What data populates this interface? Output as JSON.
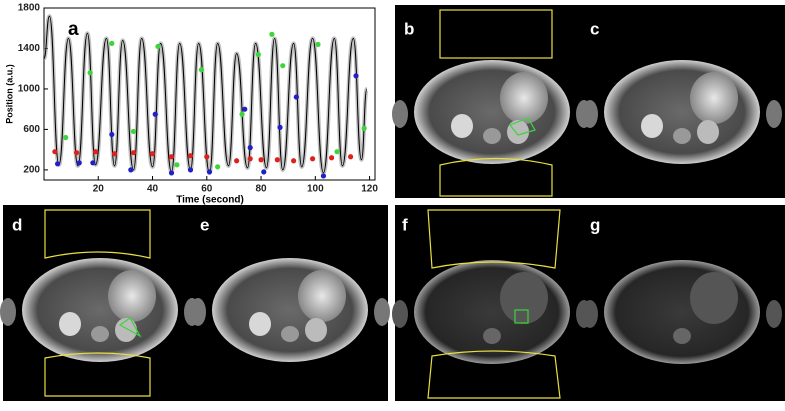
{
  "chart_data": {
    "type": "line",
    "label": "a",
    "xlabel": "Time (second)",
    "ylabel": "Position (a.u.)",
    "xlim": [
      0,
      122
    ],
    "ylim": [
      100,
      1800
    ],
    "xticks": [
      20,
      40,
      60,
      80,
      100,
      120
    ],
    "yticks": [
      200,
      600,
      1000,
      1400,
      1800
    ],
    "series": [
      {
        "type": "line",
        "color": "#000000",
        "x": [
          0,
          2,
          5.5,
          9,
          12.5,
          16,
          19,
          23,
          26,
          29,
          33,
          36,
          40,
          43,
          47,
          50,
          54,
          57,
          61,
          64,
          68,
          71,
          75,
          78,
          82,
          85,
          88,
          92,
          95,
          99,
          103,
          107,
          110,
          114,
          117,
          119
        ],
        "values": [
          1300,
          1720,
          250,
          1500,
          240,
          1550,
          250,
          1500,
          240,
          1480,
          200,
          1500,
          230,
          1450,
          180,
          1450,
          200,
          1450,
          170,
          1450,
          240,
          1350,
          220,
          1450,
          220,
          1500,
          200,
          1450,
          230,
          1500,
          170,
          1500,
          240,
          1500,
          300,
          1000
        ]
      },
      {
        "type": "scatter",
        "color": "#e0201c",
        "x": [
          4,
          12,
          19,
          26,
          33,
          40,
          47,
          54,
          60,
          71,
          76,
          80,
          86,
          92,
          99,
          106,
          113
        ],
        "values": [
          380,
          370,
          380,
          360,
          370,
          360,
          330,
          340,
          330,
          290,
          310,
          300,
          300,
          290,
          310,
          320,
          330
        ]
      },
      {
        "type": "scatter",
        "color": "#2020c8",
        "x": [
          5,
          13,
          18,
          25,
          32,
          41,
          47,
          54,
          61,
          74,
          76,
          81,
          87,
          93,
          103,
          115
        ],
        "values": [
          260,
          270,
          270,
          550,
          200,
          750,
          170,
          200,
          180,
          800,
          420,
          180,
          620,
          920,
          140,
          1130
        ]
      },
      {
        "type": "scatter",
        "color": "#3ad63a",
        "x": [
          8,
          17,
          25,
          33,
          42,
          49,
          58,
          64,
          73,
          79,
          84,
          88,
          101,
          108,
          118
        ],
        "values": [
          520,
          1160,
          1450,
          580,
          1420,
          250,
          1190,
          230,
          750,
          1340,
          1540,
          1230,
          1440,
          380,
          610
        ]
      }
    ]
  },
  "image_panels": [
    {
      "label": "b"
    },
    {
      "label": "c"
    },
    {
      "label": "d"
    },
    {
      "label": "e"
    },
    {
      "label": "f"
    },
    {
      "label": "g"
    }
  ]
}
